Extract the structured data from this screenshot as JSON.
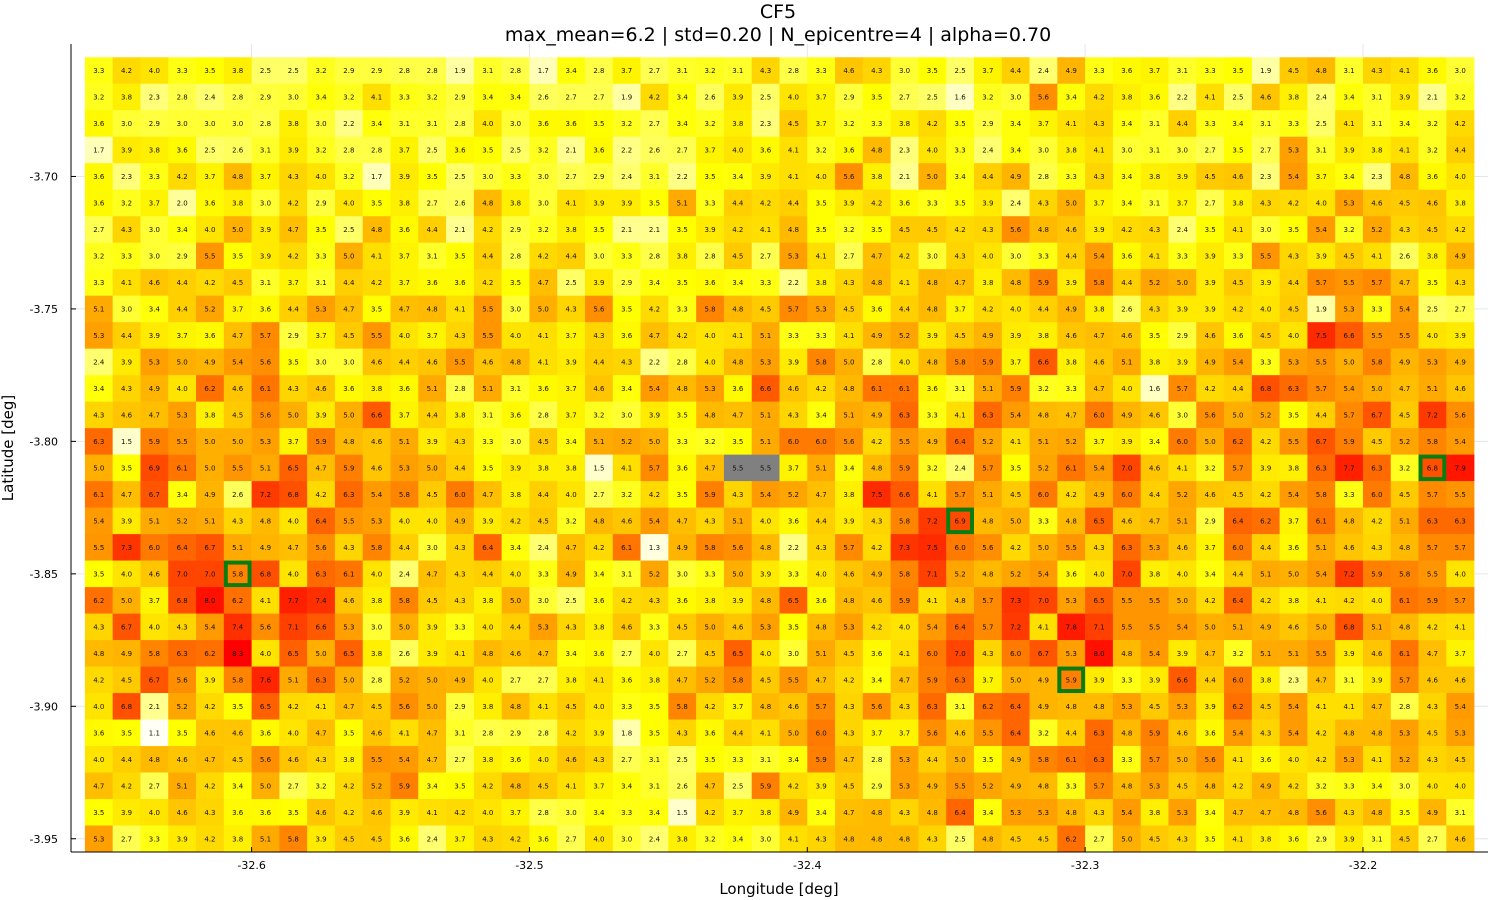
{
  "chart_data": {
    "type": "heatmap",
    "title": "CF5",
    "subtitle": "max_mean=6.2 | std=0.20 | N_epicentre=4 | alpha=0.70",
    "xlabel": "Longitude [deg]",
    "ylabel": "Latitude [deg]",
    "xlim": [
      -32.665,
      -32.155
    ],
    "ylim": [
      -3.955,
      -3.65
    ],
    "x_ticks": [
      {
        "value": -32.6,
        "label": "-32.6"
      },
      {
        "value": -32.5,
        "label": "-32.5"
      },
      {
        "value": -32.4,
        "label": "-32.4"
      },
      {
        "value": -32.3,
        "label": "-32.3"
      },
      {
        "value": -32.2,
        "label": "-32.2"
      }
    ],
    "y_ticks": [
      {
        "value": -3.7,
        "label": "-3.70"
      },
      {
        "value": -3.75,
        "label": "-3.75"
      },
      {
        "value": -3.8,
        "label": "-3.80"
      },
      {
        "value": -3.85,
        "label": "-3.85"
      },
      {
        "value": -3.9,
        "label": "-3.90"
      },
      {
        "value": -3.95,
        "label": "-3.95"
      }
    ],
    "grid": true,
    "color_scale": {
      "low": "#ffffff",
      "mid": "#ffff00",
      "high": "#ff0000",
      "missing": "#808080"
    },
    "highlight_color": "#0a7d10",
    "lon_start": -32.655,
    "lon_step": 0.01,
    "lat_start": -3.66,
    "lat_step": -0.01,
    "rows": [
      "3.3 4.2 4.0 3.3 3.5 3.8 2.5 2.5 3.2 2.9 2.9 2.8 2.8 1.9 3.1 2.8 1.7 3.4 2.8 3.7 2.7 3.1 3.2 3.1 4.3 2.8 3.3 4.6 4.3 3.0 3.5 2.5 3.7 4.4 2.4 4.9 3.3 3.6 3.7 3.1 3.3 3.5 1.9 4.5 4.8 3.1 4.3 4.1 3.6 3.0",
      "3.2 3.8 2.3 2.8 2.4 2.8 2.9 3.0 3.4 3.2 4.1 3.3 3.2 2.9 3.4 3.4 2.6 2.7 2.7 1.9 4.2 3.4 2.6 3.9 2.5 4.0 3.7 2.9 3.5 2.7 2.5 1.6 3.2 3.0 5.6 3.4 4.2 3.8 3.6 2.2 4.1 2.5 4.6 3.8 2.4 3.4 3.1 3.9 2.1 3.2",
      "3.6 3.0 2.9 3.0 3.0 3.0 2.8 3.8 3.0 2.2 3.4 3.1 3.1 2.8 4.0 3.0 3.6 3.6 3.5 3.2 2.7 3.4 3.2 3.8 2.3 4.5 3.7 3.2 3.3 3.8 4.2 3.5 2.9 3.4 3.7 4.1 4.3 3.4 3.1 4.4 3.3 3.4 3.1 3.3 2.5 4.1 3.1 3.4 3.2 4.2",
      "1.7 3.9 3.8 3.6 2.5 2.6 3.1 3.9 3.2 2.8 2.8 3.7 2.5 3.6 3.5 2.5 3.2 2.1 3.6 2.2 2.6 2.7 3.7 4.0 3.6 4.1 3.2 3.6 4.8 2.3 4.0 3.3 2.4 3.4 3.0 3.8 4.1 3.0 3.1 3.0 2.7 3.5 2.7 5.3 3.1 3.9 3.8 4.1 3.2 4.4",
      "3.6 2.3 3.3 4.2 3.7 4.8 3.7 4.3 4.0 3.2 1.7 3.9 3.5 2.5 3.0 3.3 3.0 2.7 2.9 2.4 3.1 2.2 3.5 3.4 3.9 4.1 4.0 5.6 3.8 2.1 5.0 3.4 4.4 4.9 2.8 3.3 4.3 3.4 3.8 3.9 4.5 4.6 2.3 5.4 3.7 3.4 2.3 4.8 3.6 4.0",
      "3.6 3.2 3.7 2.0 3.6 3.8 3.0 4.2 2.9 4.0 3.5 3.8 2.7 2.6 4.8 3.8 3.0 4.1 3.9 3.9 3.5 5.1 3.3 4.4 4.2 4.4 3.5 3.9 4.2 3.6 3.3 3.5 3.9 2.4 4.3 5.0 3.7 3.4 3.1 3.7 2.7 3.8 4.3 4.2 4.0 5.3 4.6 4.5 4.6 3.8",
      "2.7 4.3 3.0 3.4 4.0 5.0 3.9 4.7 3.5 2.5 4.8 3.6 4.4 2.1 4.2 2.9 3.2 3.8 3.5 2.1 2.1 3.5 3.9 4.2 4.1 4.8 3.5 3.2 3.5 4.5 4.5 4.2 4.3 5.6 4.8 4.6 3.9 4.2 4.3 2.4 3.5 4.1 3.0 3.5 5.4 3.2 5.2 4.3 4.5 4.2",
      "3.2 3.3 3.0 2.9 5.5 3.5 3.9 4.2 3.3 5.0 4.1 3.7 3.1 3.5 4.4 2.8 4.2 4.4 3.0 3.3 2.8 3.8 2.8 4.5 2.7 5.3 4.1 2.7 4.7 4.2 3.0 4.3 4.0 3.0 3.3 4.4 5.4 3.6 4.1 3.3 3.9 3.3 5.5 4.3 3.9 4.5 4.1 2.6 3.8 4.9",
      "3.3 4.1 4.6 4.4 4.2 4.5 3.1 3.7 3.1 4.4 4.2 3.7 3.6 3.6 4.2 3.5 4.7 2.5 3.9 2.9 3.4 3.5 3.6 3.4 3.3 2.2 3.8 4.3 4.8 4.1 4.8 4.7 3.8 4.8 5.9 3.9 5.8 4.4 5.2 5.0 3.9 4.5 3.9 4.4 5.7 5.5 5.7 4.7 3.5 4.3",
      "5.1 3.0 3.4 4.4 5.2 3.7 3.6 4.4 5.3 4.7 3.5 4.7 4.8 4.1 5.5 3.0 5.0 4.3 5.6 3.5 4.2 3.3 5.8 4.8 4.5 5.7 5.3 4.5 3.6 4.4 4.8 3.7 4.2 4.0 4.4 4.9 3.8 2.6 4.3 3.9 3.9 4.2 4.0 4.5 1.9 5.3 3.3 5.4 2.5 2.7",
      "5.3 4.4 3.9 3.7 3.6 4.7 5.7 2.9 3.7 4.5 5.5 4.0 3.7 4.3 5.5 4.0 4.1 3.7 4.3 3.6 4.7 4.2 4.0 4.1 5.1 3.3 3.3 4.1 4.9 5.2 3.9 4.5 4.9 3.9 3.8 4.6 4.7 4.6 3.5 2.9 4.6 3.6 4.5 4.0 7.5 6.6 5.5 5.5 4.0 3.9",
      "2.4 3.9 5.3 5.0 4.9 5.4 5.6 3.5 3.0 3.0 4.6 4.4 4.6 5.5 4.6 4.8 4.1 3.9 4.4 4.3 2.2 2.8 4.0 4.8 5.3 3.9 5.8 5.0 2.8 4.0 4.8 5.8 5.9 3.7 6.6 3.8 4.6 5.1 3.8 3.9 4.9 5.4 3.3 5.3 5.5 5.0 5.8 4.9 5.3 4.9",
      "3.4 4.3 4.9 4.0 6.2 4.6 6.1 4.3 4.6 3.6 3.8 3.6 5.1 2.8 5.1 3.1 3.6 3.7 4.6 3.4 5.4 4.8 5.3 3.6 6.6 4.6 4.2 4.8 6.1 6.1 3.6 3.1 5.1 5.9 3.2 3.3 4.7 4.0 1.6 5.7 4.2 4.4 6.8 6.3 5.7 5.4 5.0 4.7 5.1 4.6",
      "4.3 4.6 4.7 5.3 3.8 4.5 5.6 5.0 3.9 5.0 6.6 3.7 4.4 3.8 3.1 3.6 2.8 3.7 3.2 3.0 3.9 3.5 4.8 4.7 5.1 4.3 3.4 5.1 4.9 6.3 3.3 4.1 6.3 5.4 4.8 4.7 6.0 4.9 4.6 3.0 5.6 5.0 5.2 3.5 4.4 5.7 6.7 4.5 7.2 5.6",
      "6.3 1.5 5.9 5.5 5.0 5.0 5.3 3.7 5.9 4.8 4.6 5.1 3.9 4.3 3.3 3.0 4.5 3.4 5.1 5.2 5.0 3.3 3.2 3.5 5.1 6.0 6.0 5.6 4.2 5.5 4.9 6.4 5.2 4.1 5.1 5.2 3.7 3.9 3.4 6.0 5.0 6.2 4.2 5.5 6.7 5.9 4.5 5.2 5.8 5.4",
      "5.0 3.5 6.9 6.1 5.0 5.5 5.1 6.5 4.7 5.9 4.6 5.3 5.0 4.4 3.5 3.9 3.8 3.8 1.5 4.1 5.7 3.6 4.7 5.5 5.5 3.7 5.1 3.4 4.8 5.9 3.2 2.4 5.7 3.5 5.2 6.1 5.4 7.0 4.6 4.1 3.2 5.7 3.9 3.8 6.3 7.7 6.3 3.2 6.8 7.9",
      "6.1 4.7 6.7 3.4 4.9 2.6 7.2 6.8 4.2 6.3 5.4 5.8 4.5 6.0 4.7 3.8 4.4 4.0 2.7 3.2 4.2 3.5 5.9 4.3 5.4 5.2 4.7 3.8 7.5 6.6 4.1 5.7 5.1 4.5 6.0 4.2 4.9 6.0 4.4 5.2 4.6 4.5 4.2 5.4 5.8 3.3 6.0 4.5 5.7 5.5",
      "5.4 3.9 5.1 5.2 5.1 4.3 4.8 4.0 6.4 5.5 5.3 4.0 4.0 4.9 3.9 4.2 4.5 3.2 4.8 4.6 5.4 4.7 4.3 5.1 4.0 3.6 4.4 3.9 4.3 5.8 7.2 6.9 4.8 5.0 3.3 4.8 6.5 4.6 4.7 5.1 2.9 6.4 6.2 3.7 6.1 4.8 4.2 5.1 6.3 6.3",
      "5.5 7.3 6.0 6.4 6.7 5.1 4.9 4.7 5.6 4.3 5.8 4.4 3.0 4.3 6.4 3.4 2.4 4.7 4.2 6.1 1.3 4.9 5.8 5.6 4.8 2.2 4.3 5.7 4.2 7.3 7.5 6.0 5.6 4.2 5.0 5.5 4.3 6.3 5.3 4.6 3.7 6.0 4.4 3.6 5.1 4.6 4.3 4.8 5.7 5.7",
      "3.5 4.0 4.6 7.0 7.0 5.8 6.8 4.0 6.3 6.1 4.0 2.4 4.7 4.3 4.4 4.0 3.3 4.9 3.4 3.1 5.2 3.0 3.3 5.0 3.9 3.3 4.0 4.6 4.9 5.8 7.1 5.2 4.8 5.2 5.4 3.6 4.0 7.0 3.8 4.0 3.4 4.4 5.1 5.0 5.4 7.2 5.9 5.8 5.5 4.0",
      "6.2 5.0 3.7 6.8 8.0 6.2 4.1 7.7 7.4 4.6 3.8 5.8 4.5 4.3 3.8 5.0 3.0 2.5 3.6 4.2 4.3 3.6 3.8 3.9 4.8 6.5 3.6 4.8 4.6 5.9 4.1 4.8 5.7 7.3 7.0 5.3 6.5 5.5 5.5 5.0 4.2 6.4 4.2 3.8 4.1 4.2 4.0 6.1 5.9 5.7",
      "4.3 6.7 4.0 4.3 5.4 7.4 5.6 7.1 6.6 5.3 3.0 5.0 3.9 3.3 4.0 4.4 5.3 4.3 3.8 4.6 3.3 4.5 5.0 4.6 5.3 3.5 4.8 5.3 4.2 4.0 5.4 6.4 5.7 7.2 4.1 7.8 7.1 5.5 5.5 5.4 5.0 5.1 4.9 4.6 5.0 6.8 5.1 4.8 4.2 4.1",
      "4.8 4.9 5.8 6.3 6.2 8.3 4.0 6.5 5.0 6.5 3.8 2.6 3.9 4.1 4.8 4.6 4.7 3.4 3.6 2.7 4.0 2.7 4.5 6.5 4.0 3.0 5.1 4.5 3.6 4.1 6.0 7.0 4.3 6.0 6.7 5.3 8.0 4.8 5.4 3.9 4.7 3.2 5.1 5.1 5.5 3.9 4.6 6.1 4.7 3.7",
      "4.2 4.5 6.7 5.6 3.9 5.8 7.6 5.1 6.3 5.0 2.8 5.2 5.0 4.9 4.0 2.7 2.7 3.8 4.1 3.6 3.8 4.7 5.2 5.8 4.5 5.5 4.7 4.2 3.4 4.7 5.9 6.3 3.7 5.0 4.9 5.9 3.9 3.3 3.9 6.6 4.4 6.0 3.8 2.3 4.7 3.1 3.9 5.7 4.6 4.6",
      "4.0 6.8 2.1 5.2 4.2 3.5 6.5 4.2 4.1 4.7 4.5 5.6 5.0 2.9 3.8 4.8 4.1 4.5 4.0 3.3 3.5 5.8 4.2 3.7 4.8 4.6 5.7 4.3 5.6 4.3 6.3 3.1 6.2 6.4 4.9 4.8 4.8 5.3 4.5 5.3 3.9 6.2 4.5 5.4 4.1 4.1 4.7 2.8 4.3 5.4",
      "3.6 3.5 1.1 3.5 4.6 4.6 3.6 4.0 4.7 3.5 4.6 4.1 4.7 3.1 2.8 2.9 2.8 4.2 3.9 1.8 3.5 4.3 3.6 4.4 4.1 5.0 6.0 4.3 3.7 3.7 5.6 4.6 5.5 6.4 3.2 4.4 6.3 4.8 5.9 4.6 3.6 5.4 4.3 5.4 4.2 4.8 4.8 5.3 4.5 5.3",
      "4.0 4.4 4.8 4.6 4.7 4.5 5.6 4.6 4.3 3.8 5.5 5.4 4.7 2.7 3.8 3.6 4.0 4.6 4.3 2.7 3.1 2.5 3.5 3.3 3.1 3.4 5.9 4.7 2.8 5.3 4.4 5.0 3.5 4.9 5.8 6.1 6.3 3.3 5.7 5.0 5.6 4.1 3.6 4.0 4.2 5.3 4.1 5.2 4.3 4.5",
      "4.7 4.2 2.7 5.1 4.2 3.4 5.0 2.7 3.2 4.2 5.2 5.9 3.4 3.5 4.2 4.8 4.5 4.1 3.7 3.4 3.1 2.6 4.7 2.5 5.9 4.2 3.9 4.5 2.9 5.3 4.9 5.5 5.2 4.9 4.8 3.3 5.7 4.8 5.3 4.5 4.8 4.2 4.9 4.2 3.2 3.3 3.4 3.0 4.0 4.0",
      "3.5 3.9 4.0 4.6 4.3 3.6 3.6 3.5 4.6 4.2 4.6 3.9 4.1 4.2 4.0 3.7 2.8 3.0 3.4 3.3 3.4 1.5 4.2 3.7 3.8 4.9 3.4 4.7 4.8 4.3 4.8 6.4 3.4 5.3 5.3 4.8 4.3 5.4 3.8 5.3 3.4 4.7 4.7 4.8 5.6 4.3 4.8 3.5 4.9 3.1",
      "5.3 2.7 3.3 3.9 4.2 3.8 5.1 5.8 3.9 4.5 4.5 3.6 2.4 3.7 4.3 4.2 3.6 2.7 4.0 3.0 2.4 3.8 3.2 3.4 3.0 4.1 4.3 4.8 4.8 4.8 4.3 2.5 4.8 4.5 4.5 6.2 2.7 5.0 4.5 4.3 3.5 4.1 3.8 3.6 2.9 3.9 3.1 4.5 2.7 4.6"
    ],
    "missing_cells": [
      [
        15,
        23
      ],
      [
        15,
        24
      ]
    ],
    "highlighted_cells": [
      [
        19,
        5
      ],
      [
        17,
        31
      ],
      [
        15,
        48
      ],
      [
        23,
        35
      ]
    ]
  }
}
